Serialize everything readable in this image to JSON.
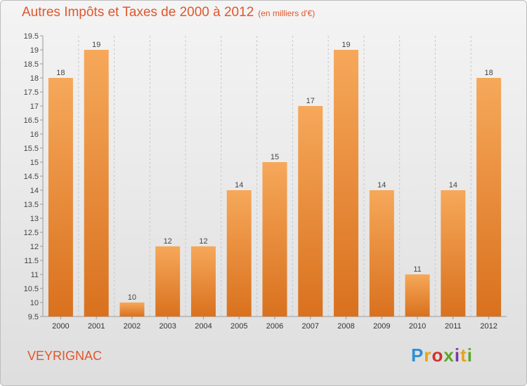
{
  "header": {
    "title": "Autres Impôts et Taxes de 2000 à 2012",
    "unit": "(en milliers d'€)"
  },
  "footer": {
    "commune": "VEYRIGNAC",
    "brand": "Proxiti",
    "brand_colors": [
      "#2e8fd6",
      "#e8a317",
      "#d2312f",
      "#5aa82a",
      "#7a3aa0"
    ]
  },
  "colors": {
    "accent": "#e0562c",
    "bar_light": "#f6a85a",
    "bar_dark": "#d9711e"
  },
  "chart_data": {
    "type": "bar",
    "title": "Autres Impôts et Taxes de 2000 à 2012",
    "subtitle": "(en milliers d'€)",
    "categories": [
      "2000",
      "2001",
      "2002",
      "2003",
      "2004",
      "2005",
      "2006",
      "2007",
      "2008",
      "2009",
      "2010",
      "2011",
      "2012"
    ],
    "values": [
      18,
      19,
      10,
      12,
      12,
      14,
      15,
      17,
      19,
      14,
      11,
      14,
      18
    ],
    "data_labels": [
      "18",
      "19",
      "10",
      "12",
      "12",
      "14",
      "15",
      "17",
      "19",
      "14",
      "11",
      "14",
      "18"
    ],
    "yticks": [
      "9.5",
      "10",
      "10.5",
      "11",
      "11.5",
      "12",
      "12.5",
      "13",
      "13.5",
      "14",
      "14.5",
      "15",
      "15.5",
      "16",
      "16.5",
      "17",
      "17.5",
      "18",
      "18.5",
      "19",
      "19.5"
    ],
    "ylim": [
      9.5,
      19.5
    ],
    "grid": "vertical-dashed",
    "legend": "none"
  }
}
